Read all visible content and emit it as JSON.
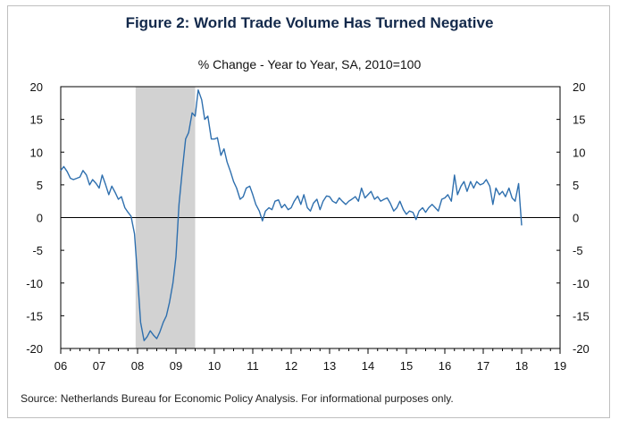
{
  "figure": {
    "title": "Figure 2: World Trade Volume Has Turned Negative",
    "subtitle": "% Change - Year to Year, SA, 2010=100",
    "source": "Source: Netherlands Bureau for Economic Policy Analysis. For informational purposes only."
  },
  "colors": {
    "line": "#2e6fae",
    "recession": "#d2d2d2",
    "title": "#13294b"
  },
  "chart_data": {
    "type": "line",
    "title": "Figure 2: World Trade Volume Has Turned Negative",
    "ylabel": "% Change - Year to Year, SA, 2010=100",
    "xlabel": "",
    "xlim": [
      2006.0,
      2019.0
    ],
    "ylim": [
      -20,
      20
    ],
    "yticks": [
      20,
      15,
      10,
      5,
      0,
      -5,
      -10,
      -15,
      -20
    ],
    "xtick_labels": [
      {
        "x": 2006,
        "label": "06"
      },
      {
        "x": 2007,
        "label": "07"
      },
      {
        "x": 2008,
        "label": "08"
      },
      {
        "x": 2009,
        "label": "09"
      },
      {
        "x": 2010,
        "label": "10"
      },
      {
        "x": 2011,
        "label": "11"
      },
      {
        "x": 2012,
        "label": "12"
      },
      {
        "x": 2013,
        "label": "13"
      },
      {
        "x": 2014,
        "label": "14"
      },
      {
        "x": 2015,
        "label": "15"
      },
      {
        "x": 2016,
        "label": "16"
      },
      {
        "x": 2017,
        "label": "17"
      },
      {
        "x": 2018,
        "label": "18"
      },
      {
        "x": 2019,
        "label": "19"
      }
    ],
    "shaded_regions": [
      {
        "x0": 2007.95,
        "x1": 2009.5
      }
    ],
    "zero_line": true,
    "right_axis_mirror": true,
    "series": [
      {
        "x": [
          2006.0,
          2006.08,
          2006.17,
          2006.25,
          2006.33,
          2006.42,
          2006.5,
          2006.58,
          2006.67,
          2006.75,
          2006.83,
          2006.92,
          2007.0,
          2007.08,
          2007.17,
          2007.25,
          2007.33,
          2007.42,
          2007.5,
          2007.58,
          2007.67,
          2007.75,
          2007.83,
          2007.92,
          2008.0,
          2008.08,
          2008.17,
          2008.25,
          2008.33,
          2008.42,
          2008.5,
          2008.58,
          2008.67,
          2008.75,
          2008.83,
          2008.92,
          2009.0,
          2009.08,
          2009.17,
          2009.25,
          2009.33,
          2009.42,
          2009.5,
          2009.58,
          2009.67,
          2009.75,
          2009.83,
          2009.92,
          2010.0,
          2010.08,
          2010.17,
          2010.25,
          2010.33,
          2010.42,
          2010.5,
          2010.58,
          2010.67,
          2010.75,
          2010.83,
          2010.92,
          2011.0,
          2011.08,
          2011.17,
          2011.25,
          2011.33,
          2011.42,
          2011.5,
          2011.58,
          2011.67,
          2011.75,
          2011.83,
          2011.92,
          2012.0,
          2012.08,
          2012.17,
          2012.25,
          2012.33,
          2012.42,
          2012.5,
          2012.58,
          2012.67,
          2012.75,
          2012.83,
          2012.92,
          2013.0,
          2013.08,
          2013.17,
          2013.25,
          2013.33,
          2013.42,
          2013.5,
          2013.58,
          2013.67,
          2013.75,
          2013.83,
          2013.92,
          2014.0,
          2014.08,
          2014.17,
          2014.25,
          2014.33,
          2014.42,
          2014.5,
          2014.58,
          2014.67,
          2014.75,
          2014.83,
          2014.92,
          2015.0,
          2015.08,
          2015.17,
          2015.25,
          2015.33,
          2015.42,
          2015.5,
          2015.58,
          2015.67,
          2015.75,
          2015.83,
          2015.92,
          2016.0,
          2016.08,
          2016.17,
          2016.25,
          2016.33,
          2016.42,
          2016.5,
          2016.58,
          2016.67,
          2016.75,
          2016.83,
          2016.92,
          2017.0,
          2017.08,
          2017.17,
          2017.25,
          2017.33,
          2017.42,
          2017.5,
          2017.58,
          2017.67,
          2017.75,
          2017.83,
          2017.92,
          2018.0
        ],
        "values": [
          7.2,
          7.8,
          7.0,
          6.0,
          5.8,
          6.0,
          6.2,
          7.2,
          6.5,
          5.0,
          5.8,
          5.2,
          4.5,
          6.5,
          5.0,
          3.5,
          4.8,
          3.8,
          2.8,
          3.2,
          1.5,
          0.8,
          0.2,
          -2.5,
          -9.0,
          -16.0,
          -18.8,
          -18.2,
          -17.3,
          -18.0,
          -18.5,
          -17.5,
          -16.0,
          -15.0,
          -13.0,
          -10.0,
          -6.0,
          2.0,
          7.5,
          12.0,
          13.0,
          16.0,
          15.5,
          19.5,
          18.0,
          15.0,
          15.5,
          12.0,
          12.0,
          12.2,
          9.5,
          10.5,
          8.5,
          7.0,
          5.5,
          4.5,
          2.8,
          3.2,
          4.5,
          4.8,
          3.5,
          2.0,
          1.0,
          -0.5,
          1.0,
          1.5,
          1.2,
          2.5,
          2.7,
          1.5,
          2.0,
          1.2,
          1.5,
          2.5,
          3.3,
          2.0,
          3.5,
          1.5,
          1.0,
          2.2,
          2.8,
          1.2,
          2.5,
          3.3,
          3.2,
          2.5,
          2.2,
          3.0,
          2.5,
          2.0,
          2.5,
          2.8,
          3.2,
          2.5,
          4.5,
          3.0,
          3.5,
          4.0,
          2.8,
          3.2,
          2.5,
          2.8,
          3.0,
          2.2,
          1.0,
          1.5,
          2.5,
          1.2,
          0.5,
          1.0,
          0.8,
          -0.3,
          1.0,
          1.5,
          0.8,
          1.5,
          2.0,
          1.5,
          1.0,
          2.8,
          3.0,
          3.5,
          2.5,
          6.5,
          3.5,
          4.8,
          5.5,
          4.0,
          5.5,
          4.5,
          5.5,
          5.0,
          5.2,
          5.8,
          4.8,
          2.0,
          4.5,
          3.5,
          4.0,
          3.2,
          4.5,
          3.0,
          2.5,
          5.2,
          -1.2
        ]
      }
    ]
  }
}
